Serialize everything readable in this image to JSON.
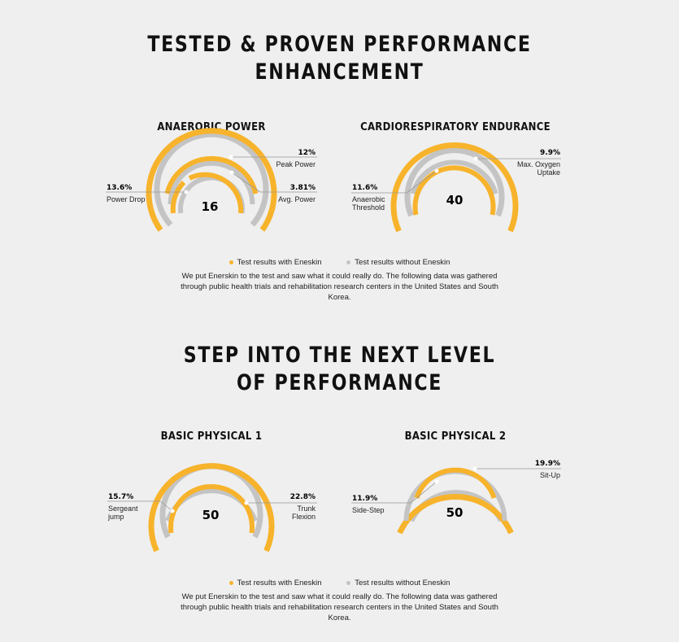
{
  "headings": {
    "h1_line1": "TESTED & PROVEN PERFORMANCE",
    "h1_line2": "ENHANCEMENT",
    "h2_line1": "STEP INTO THE NEXT LEVEL",
    "h2_line2": "OF PERFORMANCE"
  },
  "legend": {
    "with_label": "Test results with Eneskin",
    "without_label": "Test results without Eneskin",
    "with_color": "#f7b32b",
    "without_color": "#c4c4c4"
  },
  "description": "We put Enerskin to the test and saw what it could really do. The following data was gathered through public health trials and rehabilitation research centers in the United States and South Korea.",
  "chart_data": [
    {
      "type": "gauge",
      "title": "ANAEROBIC POWER",
      "center_value": "16",
      "series": [
        {
          "label": "Peak Power",
          "value": "12%",
          "side": "right"
        },
        {
          "label": "Avg. Power",
          "value": "3.81%",
          "side": "right"
        },
        {
          "label": "Power Drop",
          "value": "13.6%",
          "side": "left"
        }
      ]
    },
    {
      "type": "gauge",
      "title": "CARDIORESPIRATORY ENDURANCE",
      "center_value": "40",
      "series": [
        {
          "label": "Max. Oxygen Uptake",
          "value": "9.9%",
          "side": "right"
        },
        {
          "label": "Anaerobic Threshold",
          "value": "11.6%",
          "side": "left"
        }
      ]
    },
    {
      "type": "gauge",
      "title": "BASIC PHYSICAL 1",
      "center_value": "50",
      "series": [
        {
          "label": "Sergeant jump",
          "value": "15.7%",
          "side": "left"
        },
        {
          "label": "Trunk Flexion",
          "value": "22.8%",
          "side": "right"
        }
      ]
    },
    {
      "type": "gauge",
      "title": "BASIC PHYSICAL 2",
      "center_value": "50",
      "series": [
        {
          "label": "Sit-Up",
          "value": "19.9%",
          "side": "right"
        },
        {
          "label": "Side-Step",
          "value": "11.9%",
          "side": "left"
        }
      ]
    }
  ]
}
